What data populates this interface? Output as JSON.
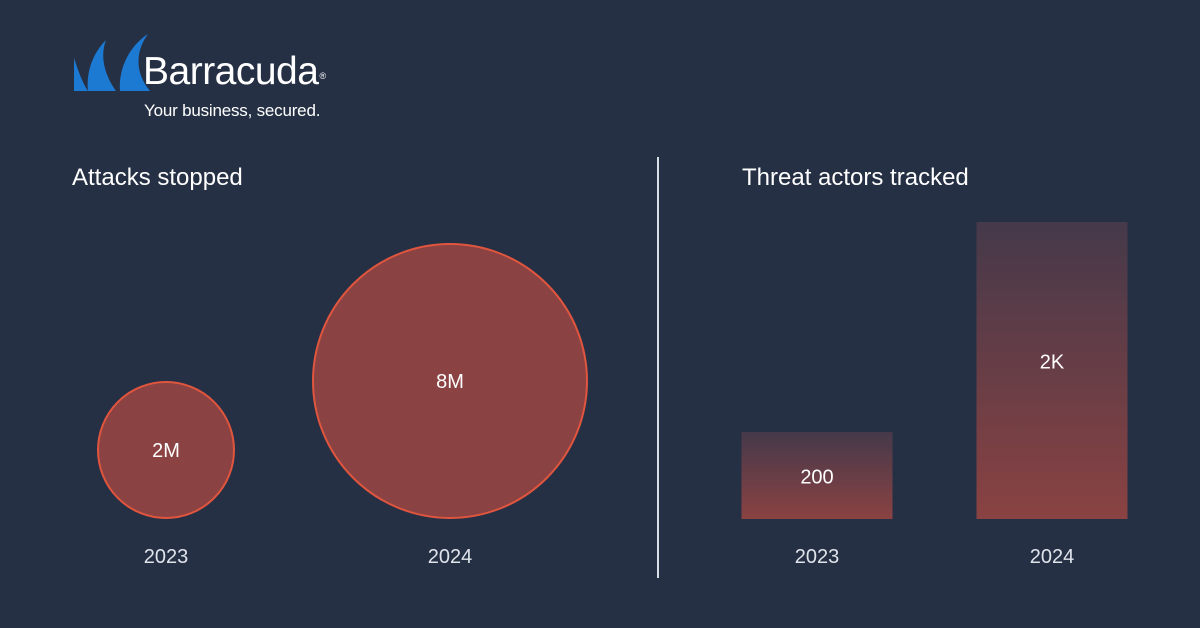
{
  "brand": {
    "name": "Barracuda",
    "reg": "®",
    "tagline": "Your business, secured."
  },
  "colors": {
    "background": "#263045",
    "logo_blue": "#1c7ad2",
    "circle_fill": "#8a4242",
    "circle_stroke": "#e0553e",
    "bar_top": "#45394a",
    "bar_bottom": "#8a4242",
    "text": "#ffffff",
    "axis_text": "#dfe3ea"
  },
  "chart_data": [
    {
      "type": "bubble",
      "title": "Attacks stopped",
      "categories": [
        "2023",
        "2024"
      ],
      "values": [
        2000000,
        8000000
      ],
      "labels": [
        "2M",
        "8M"
      ]
    },
    {
      "type": "bar",
      "title": "Threat actors tracked",
      "categories": [
        "2023",
        "2024"
      ],
      "values": [
        200,
        2000
      ],
      "labels": [
        "200",
        "2K"
      ]
    }
  ]
}
